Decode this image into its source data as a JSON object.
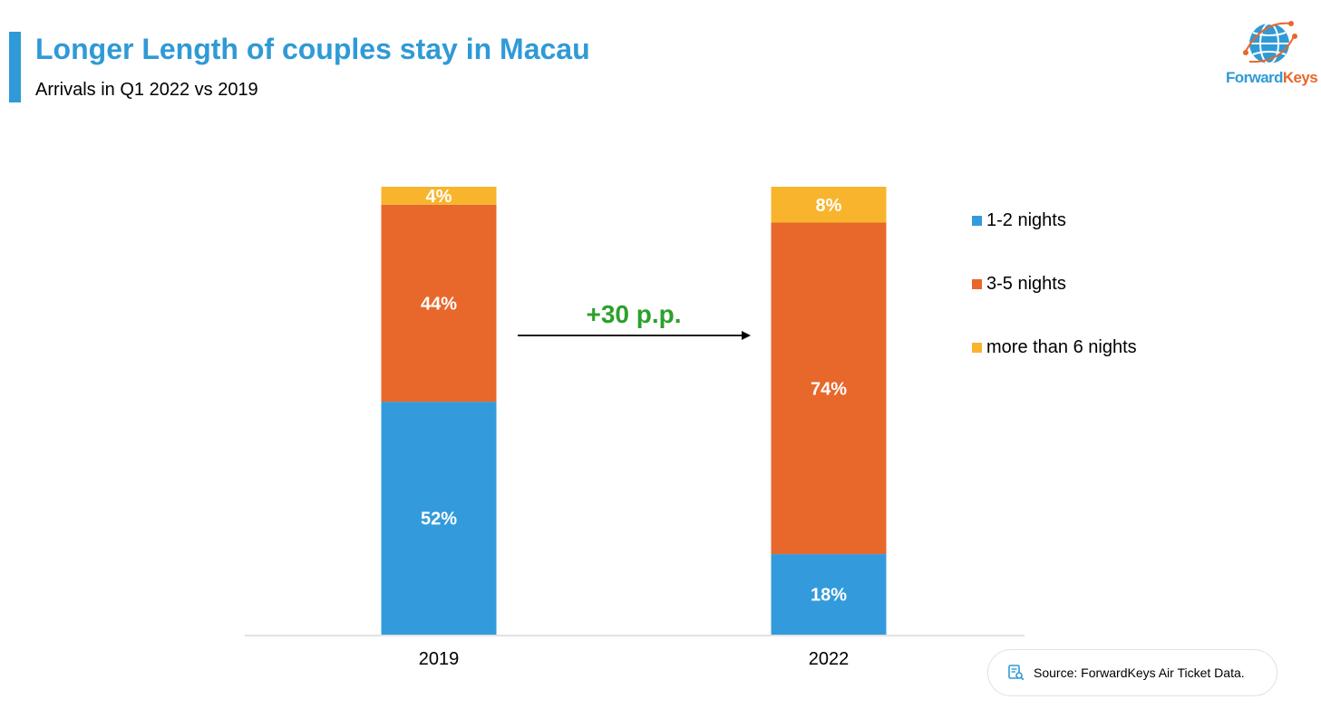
{
  "header": {
    "title": "Longer Length of couples stay in Macau",
    "subtitle": "Arrivals in Q1 2022 vs 2019"
  },
  "logo": {
    "text_a": "Forward",
    "text_b": "Keys"
  },
  "annotation": {
    "text": "+30 p.p.",
    "color": "#2ca02c"
  },
  "source": {
    "text": "Source: ForwardKeys Air Ticket Data.",
    "icon": "document-search-icon"
  },
  "colors": {
    "title": "#2f9ad6",
    "nights_1_2": "#339bdc",
    "nights_3_5": "#e8672a",
    "nights_6_plus": "#f7b42c"
  },
  "chart_data": {
    "type": "bar",
    "stacked": true,
    "categories": [
      "2019",
      "2022"
    ],
    "series": [
      {
        "name": "1-2 nights",
        "values": [
          52,
          18
        ],
        "color": "#339bdc"
      },
      {
        "name": "3-5 nights",
        "values": [
          44,
          74
        ],
        "color": "#e8672a"
      },
      {
        "name": "more than 6 nights",
        "values": [
          4,
          8
        ],
        "color": "#f7b42c"
      }
    ],
    "data_labels": [
      [
        "52%",
        "44%",
        "4%"
      ],
      [
        "18%",
        "74%",
        "8%"
      ]
    ],
    "ylim": [
      0,
      100
    ],
    "grid": false,
    "legend": {
      "position": "right",
      "labels": [
        "1-2 nights",
        "3-5 nights",
        "more than 6 nights"
      ]
    }
  }
}
